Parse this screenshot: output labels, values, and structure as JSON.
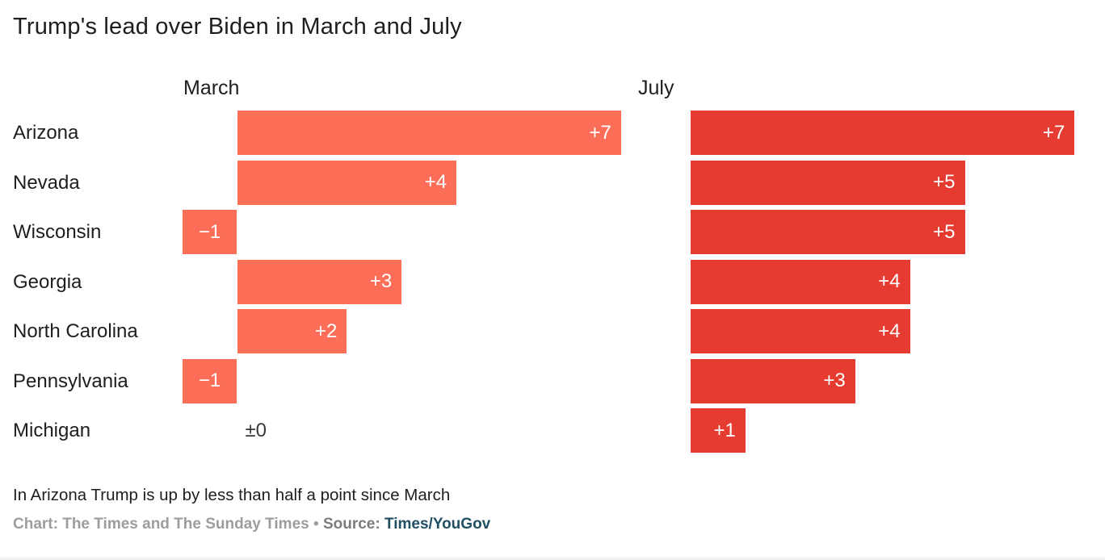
{
  "title": "Trump's lead over Biden in March and July",
  "chart_data": {
    "type": "bar",
    "orientation": "horizontal",
    "title": "Trump's lead over Biden in March and July",
    "categories": [
      "Arizona",
      "Nevada",
      "Wisconsin",
      "Georgia",
      "North Carolina",
      "Pennsylvania",
      "Michigan"
    ],
    "series": [
      {
        "name": "March",
        "color": "#FC6E58",
        "values": [
          7,
          4,
          -1,
          3,
          2,
          -1,
          0
        ],
        "labels": [
          "+7",
          "+4",
          "−1",
          "+3",
          "+2",
          "−1",
          "±0"
        ]
      },
      {
        "name": "July",
        "color": "#E63B30",
        "values": [
          7,
          5,
          5,
          4,
          4,
          3,
          1
        ],
        "labels": [
          "+7",
          "+5",
          "+5",
          "+4",
          "+4",
          "+3",
          "+1"
        ]
      }
    ],
    "xlim": [
      -1,
      7
    ],
    "grid": false,
    "legend_position": "column-headers",
    "value_label_color_inside": "#ffffff",
    "value_label_color_zero": "#3a3a3a"
  },
  "footer": {
    "note": "In Arizona Trump is up by less than half a point since March",
    "credit_prefix": "Chart: The Times and The Sunday Times • ",
    "source_label": "Source: ",
    "source_link": "Times/YouGov",
    "source_link_color": "#204e63"
  }
}
